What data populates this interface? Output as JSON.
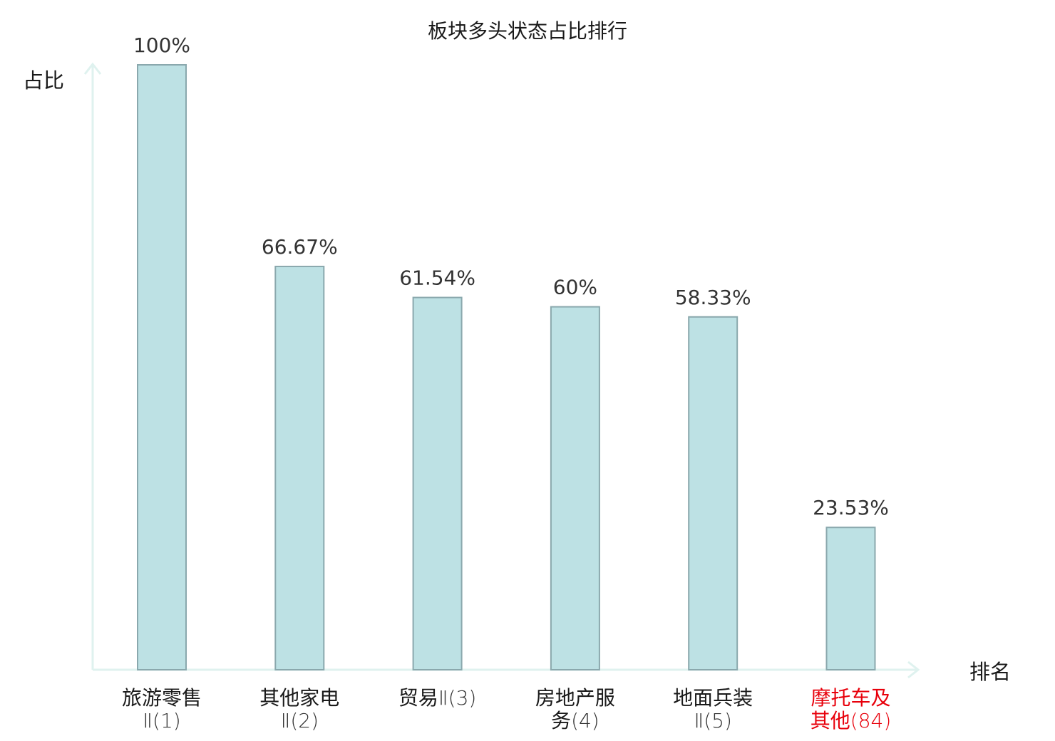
{
  "chart_data": {
    "type": "bar",
    "title": "板块多头状态占比排行",
    "ylabel": "占比",
    "xlabel": "排名",
    "ylim": [
      0,
      100
    ],
    "grid": false,
    "categories": [
      {
        "name": "旅游零售",
        "suffix": "Ⅱ(1)",
        "highlight": false
      },
      {
        "name": "其他家电",
        "suffix": "Ⅱ(2)",
        "highlight": false
      },
      {
        "name": "贸易",
        "suffix": "Ⅱ(3)",
        "highlight": false
      },
      {
        "name": "房地产服务",
        "suffix": "(4)",
        "highlight": false
      },
      {
        "name": "地面兵装",
        "suffix": "Ⅱ(5)",
        "highlight": false
      },
      {
        "name": "摩托车及其他",
        "suffix": "(84)",
        "highlight": true
      }
    ],
    "values": [
      100,
      66.67,
      61.54,
      60,
      58.33,
      23.53
    ],
    "value_labels": [
      "100%",
      "66.67%",
      "61.54%",
      "60%",
      "58.33%",
      "23.53%"
    ],
    "colors": {
      "bar_fill": "#bde1e4",
      "bar_stroke": "#8aa8ad",
      "axis": "#dff2ef",
      "highlight_text": "#e8000b"
    }
  }
}
